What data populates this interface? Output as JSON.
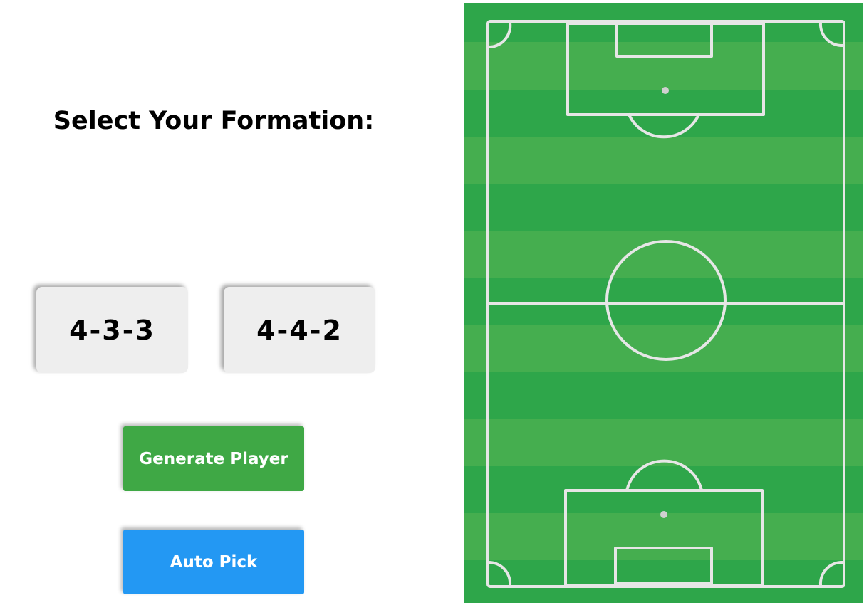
{
  "header": {
    "title": "Select Your Formation:"
  },
  "formations": [
    {
      "label": "4-3-3"
    },
    {
      "label": "4-4-2"
    }
  ],
  "actions": {
    "generate_label": "Generate Player",
    "autopick_label": "Auto Pick"
  },
  "colors": {
    "generate": "#3fa845",
    "autopick": "#2398f3",
    "pitch_dark": "#2ea64a",
    "pitch_light": "#45ae4f",
    "lines": "#e6e6e6"
  }
}
